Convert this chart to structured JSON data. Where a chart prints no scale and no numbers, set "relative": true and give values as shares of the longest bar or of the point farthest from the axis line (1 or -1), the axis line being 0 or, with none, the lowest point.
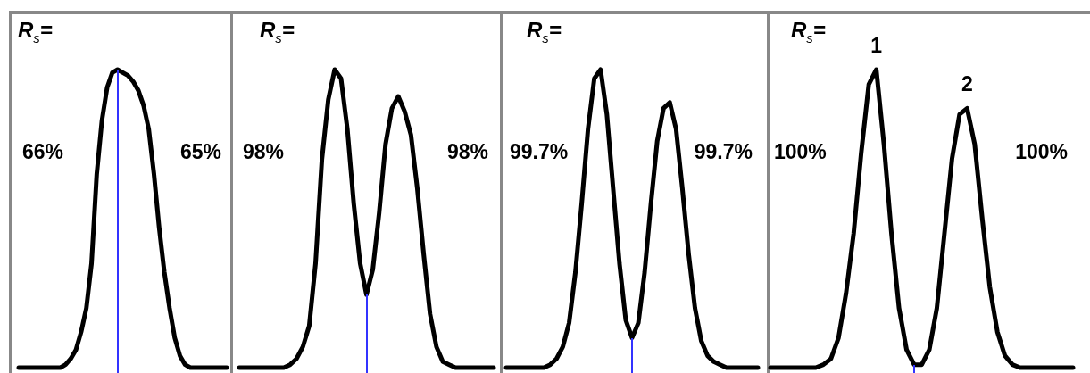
{
  "chart_data": [
    {
      "type": "line",
      "title": "R$_{s}$=",
      "relative": true,
      "marker": "none",
      "categories": [
        null,
        null,
        null,
        null,
        null,
        null,
        null,
        null,
        null,
        null,
        null,
        null,
        null,
        null,
        null,
        null,
        null,
        null,
        null,
        null,
        null,
        null,
        null,
        null,
        null,
        null,
        null,
        null,
        null,
        null,
        null,
        null,
        null,
        null,
        null,
        null,
        null,
        null,
        null,
        null,
        null
      ],
      "series": [
        {
          "color": "#000000",
          "values": [
            0,
            0,
            0,
            0,
            0,
            0,
            0,
            0,
            0,
            0.01,
            0.03,
            0.06,
            0.12,
            0.2,
            0.35,
            0.65,
            0.83,
            0.94,
            0.99,
            1.0,
            0.99,
            0.98,
            0.96,
            0.93,
            0.88,
            0.8,
            0.65,
            0.47,
            0.32,
            0.2,
            0.1,
            0.04,
            0.01,
            0,
            0,
            0,
            0,
            0,
            0,
            0,
            0
          ]
        }
      ],
      "annotations": [
        "66%",
        "65%"
      ]
    },
    {
      "type": "line",
      "title": "R$_{s}$=",
      "relative": true,
      "marker": "none",
      "categories": [
        null,
        null,
        null,
        null,
        null,
        null,
        null,
        null,
        null,
        null,
        null,
        null,
        null,
        null,
        null,
        null,
        null,
        null,
        null,
        null,
        null,
        null,
        null,
        null,
        null,
        null,
        null,
        null,
        null,
        null,
        null,
        null,
        null,
        null,
        null,
        null,
        null,
        null,
        null,
        null,
        null
      ],
      "series": [
        {
          "color": "#000000",
          "values": [
            0,
            0,
            0,
            0,
            0,
            0,
            0,
            0,
            0.01,
            0.03,
            0.07,
            0.14,
            0.35,
            0.7,
            0.9,
            1,
            0.97,
            0.8,
            0.55,
            0.35,
            0.245,
            0.33,
            0.52,
            0.75,
            0.87,
            0.91,
            0.86,
            0.78,
            0.6,
            0.38,
            0.18,
            0.07,
            0.02,
            0.01,
            0,
            0,
            0,
            0,
            0,
            0,
            0
          ]
        }
      ],
      "annotations": [
        "98%",
        "98%"
      ]
    },
    {
      "type": "line",
      "title": "R$_{s}$=",
      "relative": true,
      "marker": "none",
      "categories": [
        null,
        null,
        null,
        null,
        null,
        null,
        null,
        null,
        null,
        null,
        null,
        null,
        null,
        null,
        null,
        null,
        null,
        null,
        null,
        null,
        null,
        null,
        null,
        null,
        null,
        null,
        null,
        null,
        null,
        null,
        null,
        null,
        null,
        null,
        null,
        null,
        null,
        null,
        null,
        null,
        null
      ],
      "series": [
        {
          "color": "#000000",
          "values": [
            0,
            0,
            0,
            0,
            0,
            0,
            0,
            0.01,
            0.03,
            0.07,
            0.15,
            0.32,
            0.55,
            0.8,
            0.97,
            1,
            0.85,
            0.6,
            0.35,
            0.16,
            0.1,
            0.15,
            0.32,
            0.55,
            0.76,
            0.87,
            0.89,
            0.8,
            0.6,
            0.38,
            0.2,
            0.09,
            0.04,
            0.02,
            0.01,
            0,
            0,
            0,
            0,
            0,
            0
          ]
        }
      ],
      "annotations": [
        "99.7%",
        "99.7%"
      ]
    },
    {
      "type": "line",
      "title": "R$_{s}$=",
      "relative": true,
      "marker": "none",
      "categories": [
        null,
        null,
        null,
        null,
        null,
        null,
        null,
        null,
        null,
        null,
        null,
        null,
        null,
        null,
        null,
        null,
        null,
        null,
        null,
        null,
        null,
        null,
        null,
        null,
        null,
        null,
        null,
        null,
        null,
        null,
        null,
        null,
        null,
        null,
        null,
        null,
        null,
        null,
        null,
        null,
        null
      ],
      "series": [
        {
          "color": "#000000",
          "values": [
            0,
            0,
            0,
            0,
            0,
            0,
            0,
            0.01,
            0.03,
            0.1,
            0.25,
            0.45,
            0.72,
            0.95,
            1,
            0.75,
            0.45,
            0.2,
            0.06,
            0.01,
            0.01,
            0.06,
            0.2,
            0.45,
            0.7,
            0.85,
            0.87,
            0.75,
            0.5,
            0.27,
            0.12,
            0.04,
            0.01,
            0,
            0,
            0,
            0,
            0,
            0,
            0,
            0
          ]
        }
      ],
      "annotations": [
        "1",
        "2",
        "100%",
        "100%"
      ]
    }
  ]
}
